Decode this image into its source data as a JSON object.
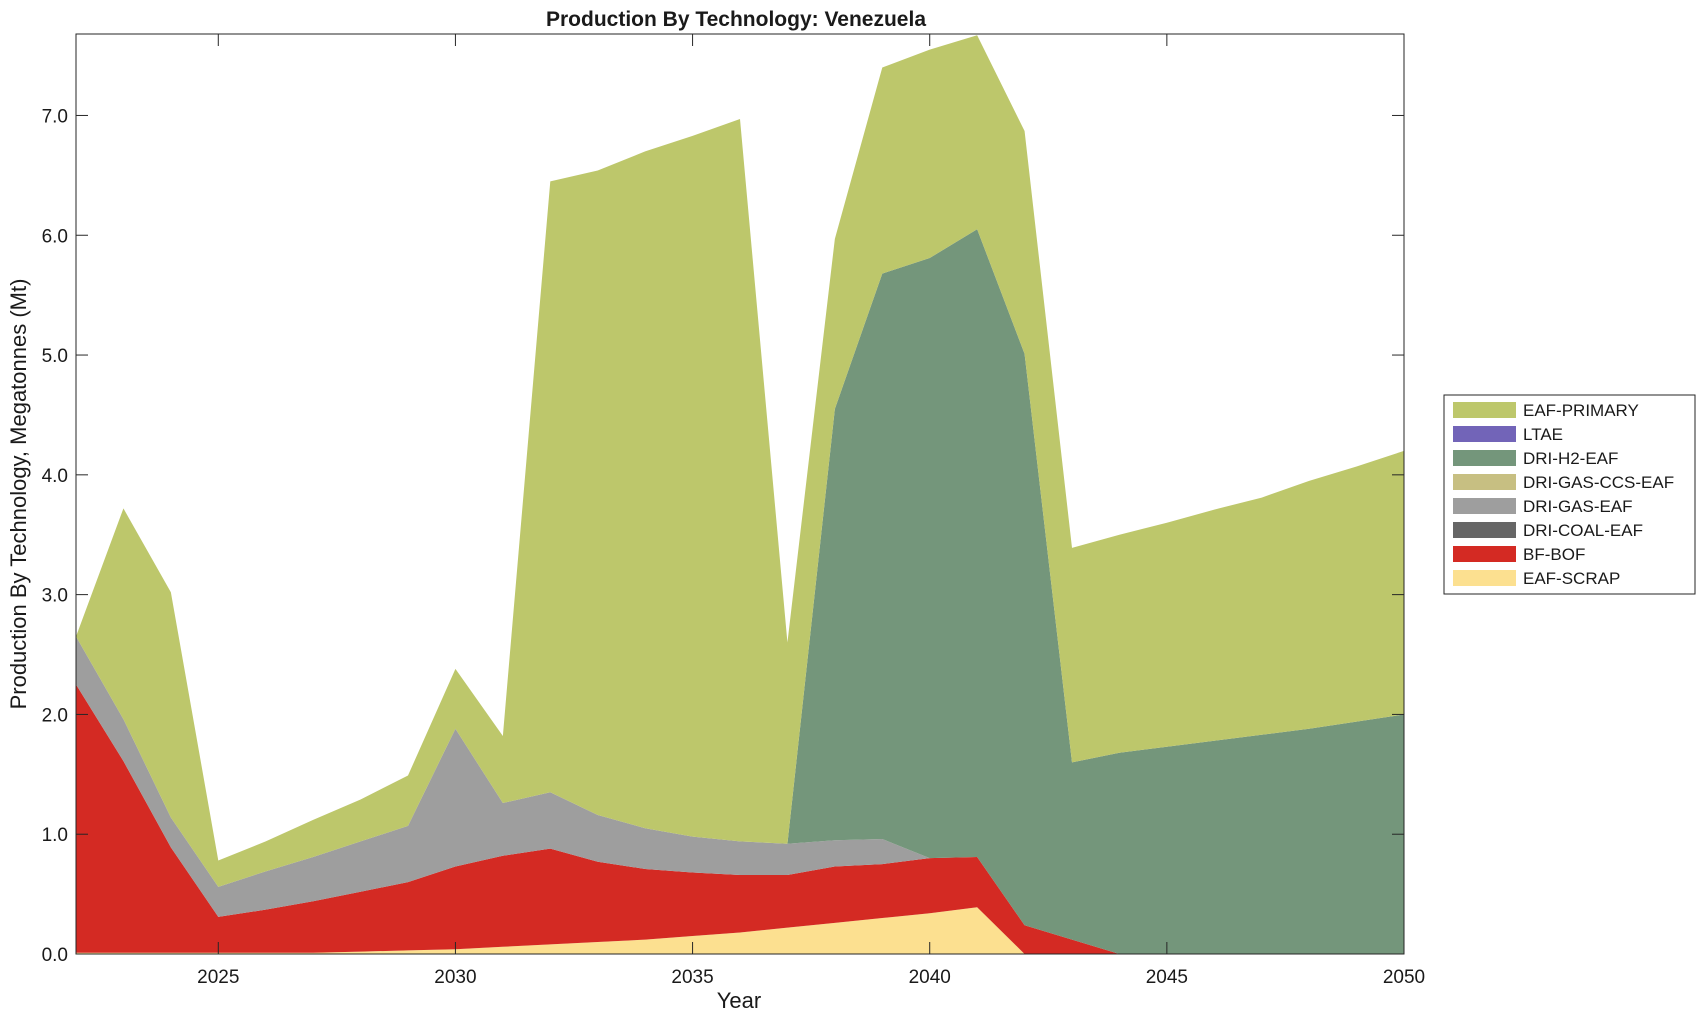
{
  "chart_data": {
    "type": "area",
    "title": "Production By Technology: Venezuela",
    "xlabel": "Year",
    "ylabel": "Production By Technology, Megatonnes (Mt)",
    "xlim": [
      2022,
      2050
    ],
    "ylim": [
      0,
      7.68
    ],
    "x_ticks": [
      2025,
      2030,
      2035,
      2040,
      2045,
      2050
    ],
    "x_tick_labels": [
      "2025",
      "2030",
      "2035",
      "2040",
      "2045",
      "2050"
    ],
    "y_ticks": [
      0,
      1,
      2,
      3,
      4,
      5,
      6,
      7
    ],
    "y_tick_labels": [
      "0.0",
      "1.0",
      "2.0",
      "3.0",
      "4.0",
      "5.0",
      "6.0",
      "7.0"
    ],
    "grid": false,
    "legend_position": "right",
    "x": [
      2022,
      2023,
      2024,
      2025,
      2026,
      2027,
      2028,
      2029,
      2030,
      2031,
      2032,
      2033,
      2034,
      2035,
      2036,
      2037,
      2038,
      2039,
      2040,
      2041,
      2042,
      2043,
      2044,
      2045,
      2046,
      2047,
      2048,
      2049,
      2050
    ],
    "series": [
      {
        "name": "EAF-SCRAP",
        "color": "#fce090",
        "values": [
          0.01,
          0.01,
          0.01,
          0.01,
          0.01,
          0.01,
          0.02,
          0.03,
          0.04,
          0.06,
          0.08,
          0.1,
          0.12,
          0.15,
          0.18,
          0.22,
          0.26,
          0.3,
          0.34,
          0.39,
          0,
          0,
          0,
          0,
          0,
          0,
          0,
          0,
          0
        ]
      },
      {
        "name": "BF-BOF",
        "color": "#d42a23",
        "values": [
          2.24,
          1.6,
          0.88,
          0.3,
          0.36,
          0.43,
          0.5,
          0.57,
          0.69,
          0.76,
          0.8,
          0.67,
          0.59,
          0.53,
          0.48,
          0.44,
          0.47,
          0.45,
          0.46,
          0.42,
          0.24,
          0.12,
          0,
          0,
          0,
          0,
          0,
          0,
          0
        ]
      },
      {
        "name": "DRI-COAL-EAF",
        "color": "#666666",
        "values": [
          0,
          0,
          0,
          0,
          0,
          0,
          0,
          0,
          0,
          0,
          0,
          0,
          0,
          0,
          0,
          0,
          0,
          0,
          0,
          0,
          0,
          0,
          0,
          0,
          0,
          0,
          0,
          0,
          0
        ]
      },
      {
        "name": "DRI-GAS-EAF",
        "color": "#9e9e9e",
        "values": [
          0.4,
          0.35,
          0.25,
          0.25,
          0.32,
          0.37,
          0.42,
          0.47,
          1.15,
          0.44,
          0.47,
          0.39,
          0.34,
          0.3,
          0.28,
          0.26,
          0.22,
          0.21,
          0,
          0,
          0,
          0,
          0,
          0,
          0,
          0,
          0,
          0,
          0
        ]
      },
      {
        "name": "DRI-GAS-CCS-EAF",
        "color": "#c7bf82",
        "values": [
          0,
          0,
          0,
          0,
          0,
          0,
          0,
          0,
          0,
          0,
          0,
          0,
          0,
          0,
          0,
          0,
          0,
          0,
          0,
          0,
          0,
          0,
          0,
          0,
          0,
          0,
          0,
          0,
          0
        ]
      },
      {
        "name": "DRI-H2-EAF",
        "color": "#74967b",
        "values": [
          0,
          0,
          0,
          0,
          0,
          0,
          0,
          0,
          0,
          0,
          0,
          0,
          0,
          0,
          0,
          0,
          3.6,
          4.72,
          5.01,
          5.24,
          4.77,
          1.48,
          1.68,
          1.73,
          1.78,
          1.83,
          1.88,
          1.94,
          2.0
        ]
      },
      {
        "name": "LTAE",
        "color": "#7264b8",
        "values": [
          0,
          0,
          0,
          0,
          0,
          0,
          0,
          0,
          0,
          0,
          0,
          0,
          0,
          0,
          0,
          0,
          0,
          0,
          0,
          0,
          0,
          0,
          0,
          0,
          0,
          0,
          0,
          0,
          0
        ]
      },
      {
        "name": "EAF-PRIMARY",
        "color": "#bdc76b",
        "values": [
          0,
          1.76,
          1.88,
          0.22,
          0.25,
          0.31,
          0.35,
          0.42,
          0.5,
          0.56,
          5.1,
          5.38,
          5.65,
          5.85,
          6.03,
          1.68,
          1.42,
          1.72,
          1.74,
          1.62,
          1.86,
          1.79,
          1.82,
          1.87,
          1.93,
          1.98,
          2.07,
          2.13,
          2.2
        ]
      }
    ],
    "legend_order": [
      "EAF-PRIMARY",
      "LTAE",
      "DRI-H2-EAF",
      "DRI-GAS-CCS-EAF",
      "DRI-GAS-EAF",
      "DRI-COAL-EAF",
      "BF-BOF",
      "EAF-SCRAP"
    ]
  }
}
